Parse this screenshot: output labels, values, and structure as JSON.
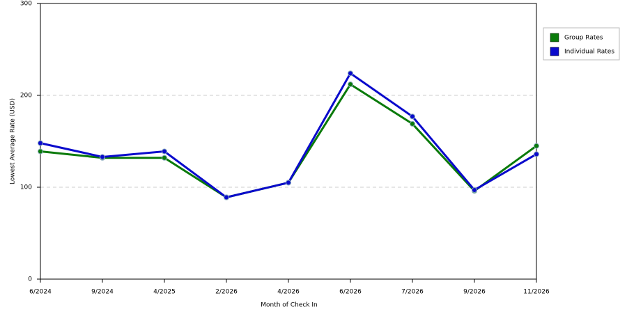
{
  "chart_data": {
    "type": "line",
    "x_label": "Month of Check In",
    "y_label": "Lowest Average Rate (USD)",
    "categories": [
      "6/2024",
      "9/2024",
      "4/2025",
      "2/2026",
      "4/2026",
      "6/2026",
      "7/2026",
      "9/2026",
      "11/2026"
    ],
    "series": [
      {
        "name": "Group Rates",
        "color": "#0a7a0a",
        "values": [
          139,
          132,
          132,
          89,
          105,
          212,
          169,
          96,
          145
        ]
      },
      {
        "name": "Individual Rates",
        "color": "#0a0acc",
        "values": [
          148,
          133,
          139,
          89,
          105,
          224,
          177,
          97,
          136
        ]
      }
    ],
    "ylim": [
      0,
      300
    ],
    "yticks": [
      0,
      100,
      200,
      300
    ],
    "grid": true,
    "legend": "right"
  }
}
